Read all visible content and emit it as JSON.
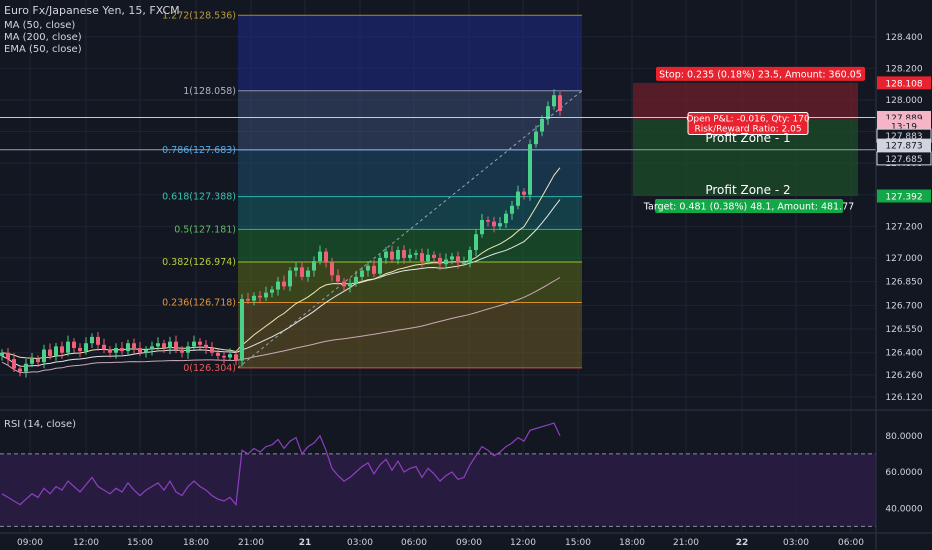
{
  "header": {
    "symbol": "Euro Fx/Japanese Yen, 15, FXCM",
    "indicators": [
      "MA (50, close)",
      "MA (200, close)",
      "EMA (50, close)"
    ],
    "rsi_label": "RSI (14, close)"
  },
  "colors": {
    "background": "#131722",
    "grid": "#1f2433",
    "up_candle": "#4bd18a",
    "down_candle": "#ef5f77",
    "rsi_line": "#8e3fc0",
    "stop_red": "#e8222e",
    "target_green": "#13a847"
  },
  "chart_data": {
    "type": "candlestick",
    "instrument": "Euro Fx/Japanese Yen",
    "timeframe": "15",
    "price_axis": {
      "ticks": [
        "128.400",
        "128.200",
        "128.000",
        "127.800",
        "127.600",
        "127.400",
        "127.200",
        "127.000",
        "126.850",
        "126.700",
        "126.550",
        "126.400",
        "126.260",
        "126.120"
      ],
      "ylim": [
        126.05,
        128.62
      ]
    },
    "time_axis": {
      "ticks": [
        "09:00",
        "12:00",
        "15:00",
        "18:00",
        "21:00",
        "21",
        "03:00",
        "06:00",
        "09:00",
        "12:00",
        "15:00",
        "18:00",
        "21:00",
        "22",
        "03:00",
        "06:00"
      ]
    },
    "closes": [
      126.4,
      126.36,
      126.3,
      126.28,
      126.33,
      126.36,
      126.34,
      126.42,
      126.38,
      126.44,
      126.4,
      126.47,
      126.43,
      126.41,
      126.46,
      126.5,
      126.45,
      126.42,
      126.4,
      126.43,
      126.41,
      126.46,
      126.43,
      126.4,
      126.42,
      126.44,
      126.46,
      126.43,
      126.47,
      126.42,
      126.4,
      126.44,
      126.47,
      126.45,
      126.43,
      126.4,
      126.38,
      126.37,
      126.39,
      126.35,
      126.74,
      126.73,
      126.76,
      126.75,
      126.78,
      126.8,
      126.85,
      126.82,
      126.92,
      126.94,
      126.88,
      126.92,
      126.98,
      127.04,
      126.97,
      126.89,
      126.85,
      126.82,
      126.84,
      126.88,
      126.92,
      126.95,
      126.9,
      127.0,
      127.04,
      126.99,
      127.05,
      127.0,
      127.02,
      127.03,
      126.98,
      127.02,
      127.0,
      126.96,
      126.99,
      127.01,
      126.97,
      126.97,
      127.05,
      127.15,
      127.24,
      127.23,
      127.2,
      127.22,
      127.28,
      127.33,
      127.42,
      127.4,
      127.72,
      127.8,
      127.88,
      127.96,
      128.03,
      127.93
    ],
    "fibonacci": {
      "levels": [
        {
          "ratio": "1.272",
          "price": "128.536"
        },
        {
          "ratio": "1",
          "price": "128.058"
        },
        {
          "ratio": "0.786",
          "price": "127.683"
        },
        {
          "ratio": "0.618",
          "price": "127.388"
        },
        {
          "ratio": "0.5",
          "price": "127.181"
        },
        {
          "ratio": "0.382",
          "price": "126.974"
        },
        {
          "ratio": "0.236",
          "price": "126.718"
        },
        {
          "ratio": "0",
          "price": "126.304"
        }
      ],
      "values": [
        128.536,
        128.058,
        127.683,
        127.388,
        127.181,
        126.974,
        126.718,
        126.304
      ]
    },
    "position": {
      "stop_label": "Stop: 0.235 (0.18%) 23.5, Amount: 360.05",
      "pnl_label": "Open P&L: -0.016, Qty: 170",
      "rr_label": "Risk/Reward Ratio: 2.05",
      "zone1_label": "Profit Zone - 1",
      "zone2_label": "Profit Zone - 2",
      "target_label": "Target: 0.481 (0.38%) 48.1, Amount: 481.77",
      "stop_price": 128.108,
      "entry_price": 127.873,
      "target_price": 127.392,
      "mid_price": 127.685
    },
    "price_markers": [
      {
        "label": "128.108",
        "value": 128.108,
        "style": "red"
      },
      {
        "label": "127.889",
        "value": 127.889,
        "style": "pink"
      },
      {
        "label": "13:19",
        "value": 127.836,
        "style": "pink"
      },
      {
        "label": "127.883",
        "value": 127.774,
        "style": "outline"
      },
      {
        "label": "127.873",
        "value": 127.714,
        "style": "light"
      },
      {
        "label": "127.685",
        "value": 127.63,
        "style": "outline"
      },
      {
        "label": "127.392",
        "value": 127.392,
        "style": "green"
      }
    ],
    "rsi": {
      "ticks": [
        "80.0000",
        "60.0000",
        "40.0000"
      ],
      "ylim": [
        28,
        92
      ],
      "upper_band": 70,
      "lower_band": 30,
      "values": [
        48,
        46,
        44,
        42,
        45,
        48,
        46,
        51,
        48,
        52,
        50,
        55,
        52,
        49,
        53,
        57,
        52,
        50,
        48,
        51,
        49,
        54,
        50,
        47,
        50,
        52,
        54,
        50,
        55,
        49,
        47,
        52,
        55,
        52,
        50,
        47,
        45,
        44,
        46,
        42,
        72,
        70,
        73,
        71,
        74,
        75,
        78,
        73,
        77,
        79,
        70,
        74,
        76,
        80,
        72,
        62,
        58,
        55,
        57,
        60,
        63,
        65,
        59,
        64,
        67,
        61,
        66,
        60,
        62,
        63,
        57,
        62,
        59,
        55,
        58,
        60,
        56,
        57,
        64,
        69,
        74,
        72,
        69,
        71,
        74,
        76,
        79,
        77,
        83,
        84,
        85,
        86,
        87,
        80
      ]
    }
  }
}
